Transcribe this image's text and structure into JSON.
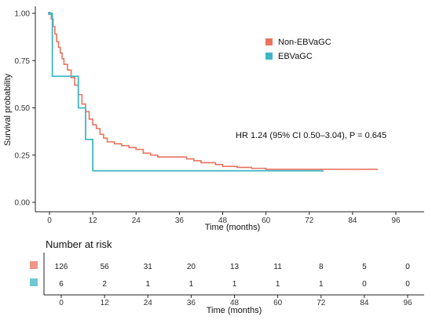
{
  "chart_data": {
    "type": "line",
    "subtype": "kaplan-meier",
    "xlabel": "Time (months)",
    "ylabel": "Survival probability",
    "xlim": [
      0,
      96
    ],
    "ylim": [
      0,
      1
    ],
    "x_ticks": [
      0,
      12,
      24,
      36,
      48,
      60,
      72,
      84,
      96
    ],
    "y_ticks": [
      "0.00",
      "0.25",
      "0.50",
      "0.75",
      "1.00"
    ],
    "grid": false,
    "legend_position": "top-right",
    "annotation": "HR 1.24 (95% CI 0.50–3.04), P = 0.645",
    "series": [
      {
        "name": "Non-EBVaGC",
        "color": "#e8735f",
        "points": [
          [
            0,
            1.0
          ],
          [
            0.5,
            0.97
          ],
          [
            1,
            0.93
          ],
          [
            1.5,
            0.89
          ],
          [
            2,
            0.85
          ],
          [
            2.5,
            0.82
          ],
          [
            3,
            0.79
          ],
          [
            3.5,
            0.76
          ],
          [
            4,
            0.73
          ],
          [
            5,
            0.7
          ],
          [
            6,
            0.66
          ],
          [
            7,
            0.62
          ],
          [
            8,
            0.57
          ],
          [
            9,
            0.52
          ],
          [
            10,
            0.48
          ],
          [
            11,
            0.44
          ],
          [
            12,
            0.41
          ],
          [
            13,
            0.39
          ],
          [
            14,
            0.36
          ],
          [
            15,
            0.34
          ],
          [
            16,
            0.32
          ],
          [
            18,
            0.31
          ],
          [
            20,
            0.3
          ],
          [
            22,
            0.29
          ],
          [
            24,
            0.28
          ],
          [
            26,
            0.26
          ],
          [
            28,
            0.25
          ],
          [
            30,
            0.24
          ],
          [
            32,
            0.24
          ],
          [
            34,
            0.24
          ],
          [
            36,
            0.24
          ],
          [
            38,
            0.23
          ],
          [
            40,
            0.22
          ],
          [
            42,
            0.21
          ],
          [
            44,
            0.21
          ],
          [
            46,
            0.2
          ],
          [
            48,
            0.19
          ],
          [
            52,
            0.185
          ],
          [
            56,
            0.18
          ],
          [
            60,
            0.175
          ],
          [
            66,
            0.175
          ],
          [
            72,
            0.175
          ],
          [
            78,
            0.175
          ],
          [
            84,
            0.175
          ],
          [
            88,
            0.175
          ],
          [
            91,
            0.175
          ]
        ]
      },
      {
        "name": "EBVaGC",
        "color": "#3fb5c6",
        "points": [
          [
            0,
            1.0
          ],
          [
            0.8,
            0.667
          ],
          [
            8,
            0.5
          ],
          [
            10,
            0.333
          ],
          [
            12,
            0.167
          ],
          [
            76,
            0.167
          ]
        ]
      }
    ]
  },
  "risk_table": {
    "title": "Number at risk",
    "xlabel": "Time (months)",
    "x_ticks": [
      0,
      12,
      24,
      36,
      48,
      60,
      72,
      84,
      96
    ],
    "rows": [
      {
        "color": "#e8735f",
        "values": [
          "126",
          "56",
          "31",
          "20",
          "13",
          "11",
          "8",
          "5",
          "0"
        ]
      },
      {
        "color": "#3fb5c6",
        "values": [
          "6",
          "2",
          "1",
          "1",
          "1",
          "1",
          "1",
          "0",
          "0"
        ]
      }
    ]
  }
}
